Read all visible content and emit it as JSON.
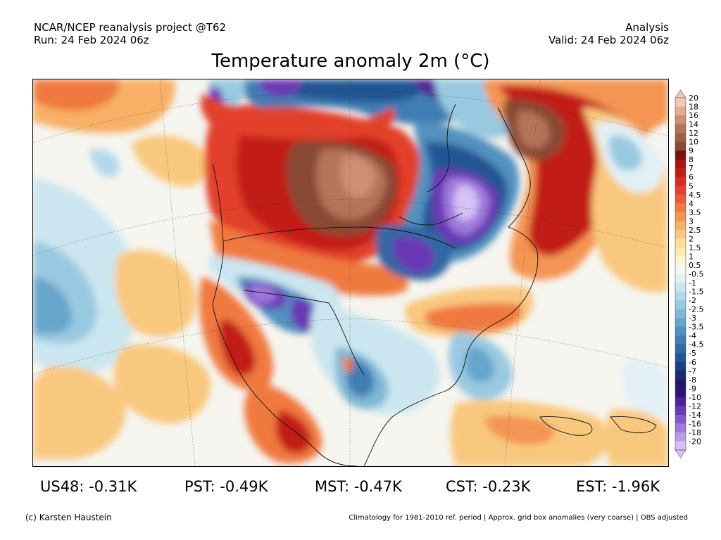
{
  "header": {
    "line1_left": "NCAR/NCEP reanalysis project @T62",
    "line2_left": "Run: 24 Feb 2024 06z",
    "line1_right": "Analysis",
    "line2_right": "Valid: 24 Feb 2024 06z"
  },
  "title": "Temperature anomaly 2m (°C)",
  "colorbar": {
    "labels": [
      "20",
      "18",
      "16",
      "14",
      "12",
      "10",
      "9",
      "8",
      "7",
      "6",
      "5",
      "4.5",
      "4",
      "3.5",
      "3",
      "2.5",
      "2",
      "1.5",
      "1",
      "0.5",
      "-0.5",
      "-1",
      "-1.5",
      "-2",
      "-2.5",
      "-3",
      "-3.5",
      "-4",
      "-4.5",
      "-5",
      "-6",
      "-7",
      "-8",
      "-9",
      "-10",
      "-12",
      "-14",
      "-16",
      "-18",
      "-20"
    ],
    "colors": [
      "#f1c7b5",
      "#e3aa94",
      "#d08e74",
      "#b5735a",
      "#9f6048",
      "#8a4a35",
      "#7f0f10",
      "#a51414",
      "#c21c19",
      "#d62b21",
      "#e2412b",
      "#ea5c36",
      "#f07941",
      "#f49552",
      "#f7b066",
      "#f9c87f",
      "#fbdc98",
      "#fde9b2",
      "#fcf4d2",
      "#f6f6f2",
      "#e3f0f6",
      "#cbe6f0",
      "#b3d8ea",
      "#99c9e1",
      "#7fb7d6",
      "#68a5cb",
      "#5391c0",
      "#407db3",
      "#3068a4",
      "#235493",
      "#1b3f80",
      "#1b2b6c",
      "#211863",
      "#321279",
      "#4f2196",
      "#6a39b5",
      "#8458cb",
      "#9f79dd",
      "#bb9cea",
      "#d6c2f4"
    ]
  },
  "regions": [
    {
      "text": "US48: -0.31K"
    },
    {
      "text": "PST: -0.49K"
    },
    {
      "text": "MST: -0.47K"
    },
    {
      "text": "CST: -0.23K"
    },
    {
      "text": "EST: -1.96K"
    }
  ],
  "footer": {
    "left": "(c) Karsten Haustein",
    "right": "Climatology for 1981-2010 ref. period | Approx. grid box anomalies (very coarse) | OBS adjusted"
  }
}
